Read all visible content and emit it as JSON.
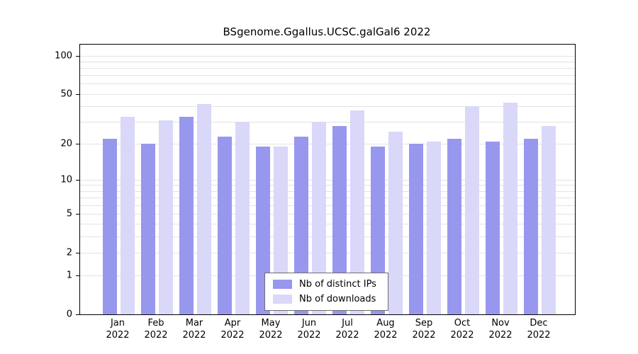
{
  "title": "BSgenome.Ggallus.UCSC.galGal6 2022",
  "chart_data": {
    "type": "bar",
    "title": "BSgenome.Ggallus.UCSC.galGal6 2022",
    "categories": [
      "Jan",
      "Feb",
      "Mar",
      "Apr",
      "May",
      "Jun",
      "Jul",
      "Aug",
      "Sep",
      "Oct",
      "Nov",
      "Dec"
    ],
    "year_label": "2022",
    "series": [
      {
        "name": "Nb of distinct IPs",
        "color": "#9897ee",
        "values": [
          22,
          20,
          33,
          23,
          19,
          23,
          28,
          19,
          20,
          22,
          21,
          22
        ]
      },
      {
        "name": "Nb of downloads",
        "color": "#d9d8f8",
        "values": [
          33,
          31,
          42,
          30,
          19,
          30,
          37,
          25,
          21,
          40,
          43,
          28
        ]
      }
    ],
    "y_ticks": [
      0,
      1,
      2,
      5,
      10,
      20,
      50,
      100
    ],
    "grid_values": [
      1,
      2,
      3,
      4,
      5,
      6,
      7,
      8,
      9,
      10,
      20,
      30,
      40,
      50,
      60,
      70,
      80,
      90,
      100
    ],
    "ylim": [
      0,
      100
    ],
    "scale": "log10(1+y)",
    "grid": true,
    "legend_position": "bottom-center-inside",
    "xlabel": "",
    "ylabel": ""
  },
  "colors": {
    "background": "#ffffff",
    "axis": "#000000",
    "grid": "#e3e3e3",
    "legend_border": "#6e6e6e"
  }
}
